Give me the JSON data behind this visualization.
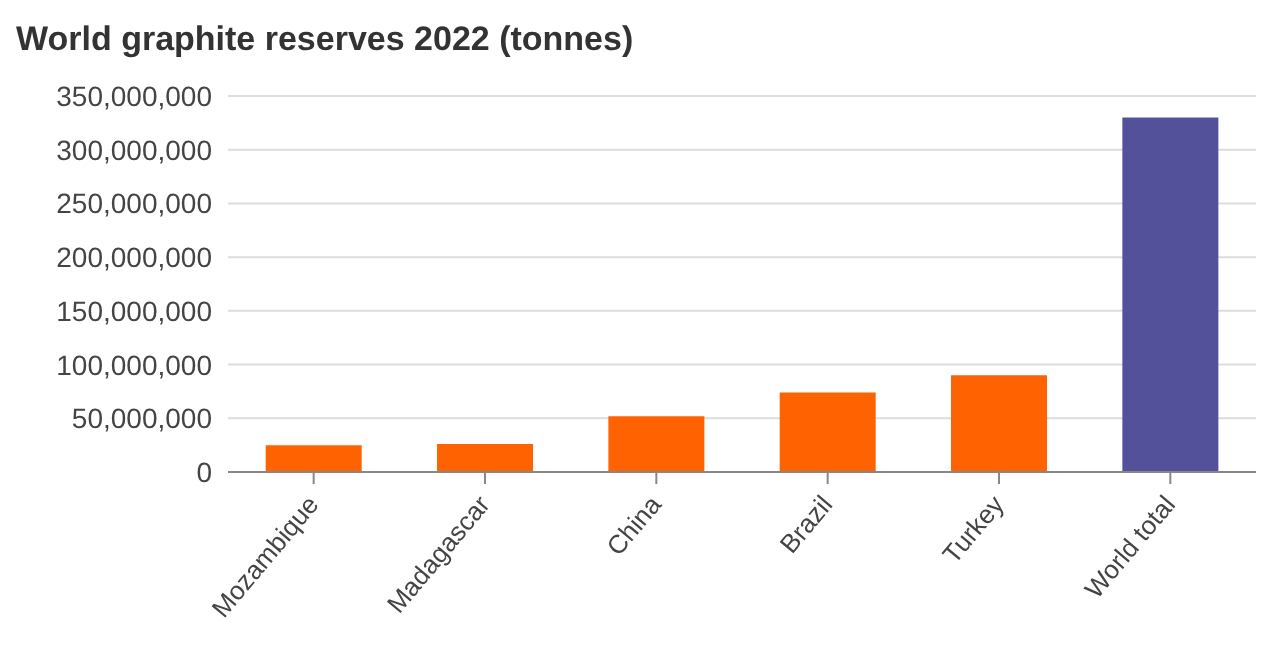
{
  "chart_data": {
    "type": "bar",
    "title": "World graphite reserves 2022 (tonnes)",
    "categories": [
      "Mozambique",
      "Madagascar",
      "China",
      "Brazil",
      "Turkey",
      "World total"
    ],
    "values": [
      25000000,
      26000000,
      52000000,
      74000000,
      90000000,
      330000000
    ],
    "colors": [
      "#ff6200",
      "#ff6200",
      "#ff6200",
      "#ff6200",
      "#ff6200",
      "#525199"
    ],
    "ylim": [
      0,
      350000000
    ],
    "yticks": [
      0,
      {
        "value": 50000000,
        "label": "50,000,000"
      },
      {
        "value": 100000000,
        "label": "100,000,000"
      },
      {
        "value": 150000000,
        "label": "150,000,000"
      },
      {
        "value": 200000000,
        "label": "200,000,000"
      },
      {
        "value": 250000000,
        "label": "250,000,000"
      },
      {
        "value": 300000000,
        "label": "300,000,000"
      },
      {
        "value": 350000000,
        "label": "350,000,000"
      }
    ],
    "grid": "y"
  }
}
